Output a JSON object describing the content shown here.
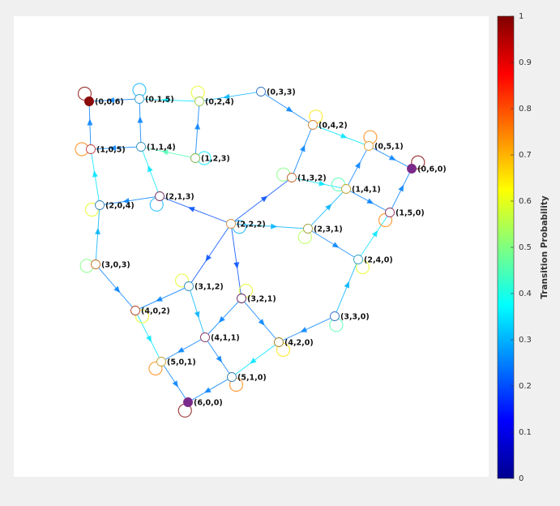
{
  "colorbar": {
    "label": "Transition Probability",
    "ticks": [
      0,
      0.1,
      0.2,
      0.3,
      0.4,
      0.5,
      0.6,
      0.7,
      0.8,
      0.9,
      1
    ],
    "lim": [
      0,
      1
    ],
    "colormap": "jet"
  },
  "nodes": [
    {
      "label": "(0,0,6)",
      "color": "#8b0a0a",
      "fill": true
    },
    {
      "label": "(0,1,5)",
      "color": "#2fa0d0",
      "fill": false
    },
    {
      "label": "(0,2,4)",
      "color": "#9ccc40",
      "fill": false
    },
    {
      "label": "(0,3,3)",
      "color": "#3070c0",
      "fill": false
    },
    {
      "label": "(0,4,2)",
      "color": "#d08030",
      "fill": false
    },
    {
      "label": "(0,5,1)",
      "color": "#e0a030",
      "fill": false
    },
    {
      "label": "(0,6,0)",
      "color": "#7a2a8a",
      "fill": true
    },
    {
      "label": "(1,0,5)",
      "color": "#c04040",
      "fill": false
    },
    {
      "label": "(1,1,4)",
      "color": "#3090c0",
      "fill": false
    },
    {
      "label": "(1,2,3)",
      "color": "#80b050",
      "fill": false
    },
    {
      "label": "(1,3,2)",
      "color": "#c06030",
      "fill": false
    },
    {
      "label": "(1,4,1)",
      "color": "#c0a030",
      "fill": false
    },
    {
      "label": "(1,5,0)",
      "color": "#8a3060",
      "fill": false
    },
    {
      "label": "(2,0,4)",
      "color": "#3080b0",
      "fill": false
    },
    {
      "label": "(2,1,3)",
      "color": "#703060",
      "fill": false
    },
    {
      "label": "(2,2,2)",
      "color": "#d09040",
      "fill": false
    },
    {
      "label": "(2,3,1)",
      "color": "#a0a040",
      "fill": false
    },
    {
      "label": "(2,4,0)",
      "color": "#30a0c0",
      "fill": false
    },
    {
      "label": "(3,0,3)",
      "color": "#c07020",
      "fill": false
    },
    {
      "label": "(3,1,2)",
      "color": "#3090c0",
      "fill": false
    },
    {
      "label": "(3,2,1)",
      "color": "#602060",
      "fill": false
    },
    {
      "label": "(3,3,0)",
      "color": "#3070c0",
      "fill": false
    },
    {
      "label": "(4,0,2)",
      "color": "#b04020",
      "fill": false
    },
    {
      "label": "(4,1,1)",
      "color": "#803060",
      "fill": false
    },
    {
      "label": "(4,2,0)",
      "color": "#a08020",
      "fill": false
    },
    {
      "label": "(5,0,1)",
      "color": "#c0a030",
      "fill": false
    },
    {
      "label": "(5,1,0)",
      "color": "#3080b0",
      "fill": false
    },
    {
      "label": "(6,0,0)",
      "color": "#7a2a8a",
      "fill": true
    }
  ],
  "edges": [
    {
      "from": 1,
      "to": 0,
      "p": 0.25
    },
    {
      "from": 7,
      "to": 0,
      "p": 0.25
    },
    {
      "from": 2,
      "to": 1,
      "p": 0.35
    },
    {
      "from": 8,
      "to": 1,
      "p": 0.25
    },
    {
      "from": 8,
      "to": 7,
      "p": 0.25
    },
    {
      "from": 3,
      "to": 2,
      "p": 0.3
    },
    {
      "from": 9,
      "to": 2,
      "p": 0.25
    },
    {
      "from": 9,
      "to": 8,
      "p": 0.45
    },
    {
      "from": 3,
      "to": 4,
      "p": 0.25
    },
    {
      "from": 4,
      "to": 5,
      "p": 0.35
    },
    {
      "from": 5,
      "to": 6,
      "p": 0.25
    },
    {
      "from": 12,
      "to": 6,
      "p": 0.25
    },
    {
      "from": 10,
      "to": 4,
      "p": 0.25
    },
    {
      "from": 11,
      "to": 5,
      "p": 0.25
    },
    {
      "from": 11,
      "to": 12,
      "p": 0.25
    },
    {
      "from": 10,
      "to": 11,
      "p": 0.35
    },
    {
      "from": 13,
      "to": 7,
      "p": 0.35
    },
    {
      "from": 14,
      "to": 8,
      "p": 0.35
    },
    {
      "from": 14,
      "to": 13,
      "p": 0.25
    },
    {
      "from": 15,
      "to": 14,
      "p": 0.2
    },
    {
      "from": 15,
      "to": 10,
      "p": 0.2
    },
    {
      "from": 15,
      "to": 16,
      "p": 0.3
    },
    {
      "from": 15,
      "to": 19,
      "p": 0.2
    },
    {
      "from": 15,
      "to": 20,
      "p": 0.2
    },
    {
      "from": 16,
      "to": 11,
      "p": 0.3
    },
    {
      "from": 16,
      "to": 17,
      "p": 0.25
    },
    {
      "from": 17,
      "to": 12,
      "p": 0.35
    },
    {
      "from": 18,
      "to": 13,
      "p": 0.3
    },
    {
      "from": 18,
      "to": 22,
      "p": 0.25
    },
    {
      "from": 19,
      "to": 22,
      "p": 0.25
    },
    {
      "from": 19,
      "to": 23,
      "p": 0.3
    },
    {
      "from": 20,
      "to": 24,
      "p": 0.25
    },
    {
      "from": 20,
      "to": 23,
      "p": 0.25
    },
    {
      "from": 21,
      "to": 24,
      "p": 0.25
    },
    {
      "from": 21,
      "to": 17,
      "p": 0.3
    },
    {
      "from": 22,
      "to": 25,
      "p": 0.35
    },
    {
      "from": 23,
      "to": 25,
      "p": 0.25
    },
    {
      "from": 23,
      "to": 26,
      "p": 0.25
    },
    {
      "from": 24,
      "to": 26,
      "p": 0.35
    },
    {
      "from": 25,
      "to": 27,
      "p": 0.25
    },
    {
      "from": 26,
      "to": 27,
      "p": 0.25
    },
    {
      "from": 0,
      "to": 0,
      "p": 1
    },
    {
      "from": 1,
      "to": 1,
      "p": 0.3
    },
    {
      "from": 2,
      "to": 2,
      "p": 0.6
    },
    {
      "from": 4,
      "to": 4,
      "p": 0.65
    },
    {
      "from": 5,
      "to": 5,
      "p": 0.75
    },
    {
      "from": 6,
      "to": 6,
      "p": 1
    },
    {
      "from": 7,
      "to": 7,
      "p": 0.75
    },
    {
      "from": 9,
      "to": 9,
      "p": 0.35
    },
    {
      "from": 10,
      "to": 10,
      "p": 0.5
    },
    {
      "from": 11,
      "to": 11,
      "p": 0.45
    },
    {
      "from": 12,
      "to": 12,
      "p": 0.75
    },
    {
      "from": 13,
      "to": 13,
      "p": 0.6
    },
    {
      "from": 14,
      "to": 14,
      "p": 0.3
    },
    {
      "from": 15,
      "to": 15,
      "p": 0.3
    },
    {
      "from": 16,
      "to": 16,
      "p": 0.55
    },
    {
      "from": 17,
      "to": 17,
      "p": 0.6
    },
    {
      "from": 18,
      "to": 18,
      "p": 0.5
    },
    {
      "from": 19,
      "to": 19,
      "p": 0.6
    },
    {
      "from": 20,
      "to": 20,
      "p": 0.6
    },
    {
      "from": 21,
      "to": 21,
      "p": 0.45
    },
    {
      "from": 22,
      "to": 22,
      "p": 0.6
    },
    {
      "from": 24,
      "to": 24,
      "p": 0.65
    },
    {
      "from": 25,
      "to": 25,
      "p": 0.75
    },
    {
      "from": 26,
      "to": 26,
      "p": 0.75
    },
    {
      "from": 27,
      "to": 27,
      "p": 1
    }
  ]
}
